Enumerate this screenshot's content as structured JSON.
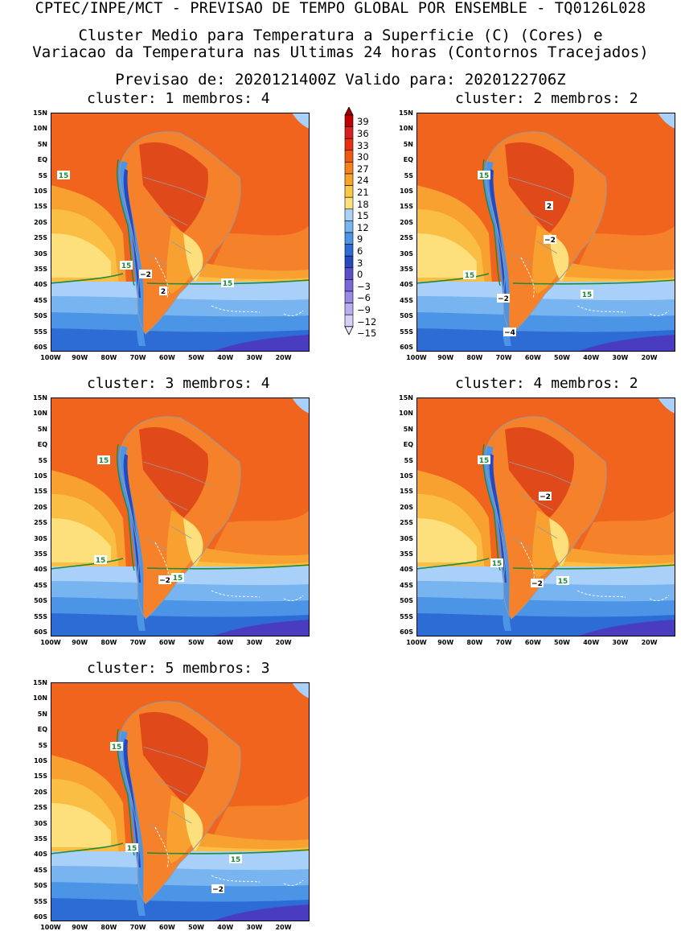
{
  "header": {
    "top": "CPTEC/INPE/MCT - PREVISAO DE TEMPO GLOBAL POR ENSEMBLE - TQ0126L028",
    "line1": "Cluster Medio para Temperatura a Superficie (C) (Cores) e",
    "line2": "Variacao da Temperatura nas Ultimas 24 horas (Contornos Tracejados)",
    "dates": "Previsao de: 2020121400Z   Valido para: 2020122706Z"
  },
  "lat_labels": [
    "15N",
    "10N",
    "5N",
    "EQ",
    "5S",
    "10S",
    "15S",
    "20S",
    "25S",
    "30S",
    "35S",
    "40S",
    "45S",
    "50S",
    "55S",
    "60S"
  ],
  "lon_labels": [
    "100W",
    "90W",
    "80W",
    "70W",
    "60W",
    "50W",
    "40W",
    "30W",
    "20W"
  ],
  "colorbar": {
    "labels": [
      "39",
      "36",
      "33",
      "30",
      "27",
      "24",
      "21",
      "18",
      "15",
      "12",
      "9",
      "6",
      "3",
      "0",
      "−3",
      "−6",
      "−9",
      "−12",
      "−15"
    ],
    "colors": [
      "#a00000",
      "#c00000",
      "#d82020",
      "#e83010",
      "#f05a10",
      "#f5821a",
      "#f8a42a",
      "#fbc843",
      "#fde07a",
      "#a8d0f8",
      "#78b4f0",
      "#4c94e6",
      "#2c6cd4",
      "#2848c0",
      "#5a50c8",
      "#7a6ad8",
      "#9a8ae6",
      "#baaef0",
      "#d8d0f8",
      "#ece8fc"
    ]
  },
  "panels": [
    {
      "title": "cluster: 1   membros: 4",
      "labels": [
        {
          "t": "15",
          "k": "g"
        },
        {
          "t": "15",
          "k": "g"
        },
        {
          "t": "15",
          "k": "g"
        },
        {
          "t": "−2",
          "k": "w"
        },
        {
          "t": "2",
          "k": "w"
        }
      ]
    },
    {
      "title": "cluster: 2   membros: 2",
      "labels": [
        {
          "t": "15",
          "k": "g"
        },
        {
          "t": "15",
          "k": "g"
        },
        {
          "t": "15",
          "k": "g"
        },
        {
          "t": "2",
          "k": "w"
        },
        {
          "t": "−2",
          "k": "w"
        },
        {
          "t": "−2",
          "k": "w"
        },
        {
          "t": "−4",
          "k": "w"
        }
      ]
    },
    {
      "title": "cluster: 3   membros: 4",
      "labels": [
        {
          "t": "15",
          "k": "g"
        },
        {
          "t": "15",
          "k": "g"
        },
        {
          "t": "15",
          "k": "g"
        },
        {
          "t": "−2",
          "k": "w"
        }
      ]
    },
    {
      "title": "cluster: 4   membros: 2",
      "labels": [
        {
          "t": "15",
          "k": "g"
        },
        {
          "t": "15",
          "k": "g"
        },
        {
          "t": "15",
          "k": "g"
        },
        {
          "t": "−2",
          "k": "w"
        },
        {
          "t": "−2",
          "k": "w"
        }
      ]
    },
    {
      "title": "cluster: 5   membros: 3",
      "labels": [
        {
          "t": "15",
          "k": "g"
        },
        {
          "t": "15",
          "k": "g"
        },
        {
          "t": "15",
          "k": "g"
        },
        {
          "t": "−2",
          "k": "w"
        }
      ]
    }
  ]
}
